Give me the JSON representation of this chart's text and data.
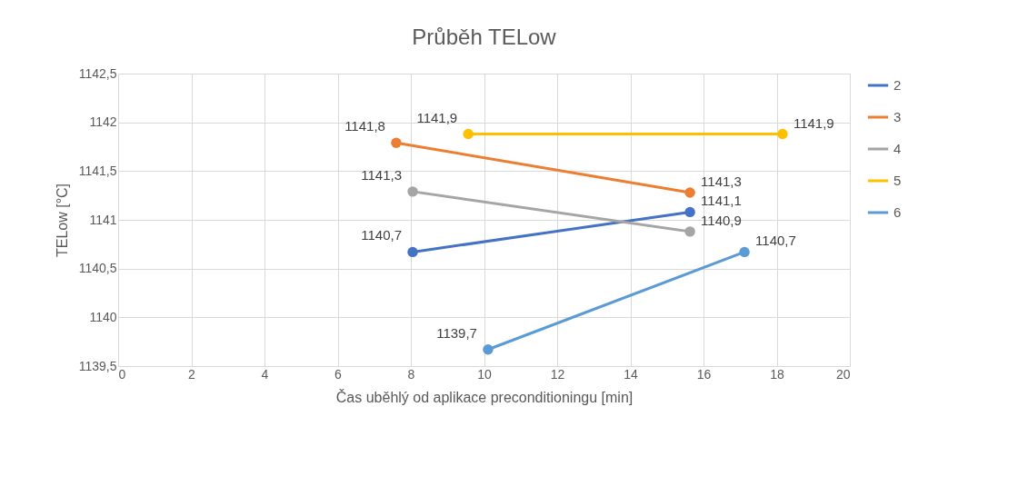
{
  "chart_data": {
    "type": "line",
    "title": "Průběh TELow",
    "xlabel": "Čas uběhlý od aplikace preconditioningu [min]",
    "ylabel": "TELow [°C]",
    "xlim": [
      0,
      20
    ],
    "xticks": [
      0,
      2,
      4,
      6,
      8,
      10,
      12,
      14,
      16,
      18,
      20
    ],
    "ylim": [
      1139.5,
      1142.5
    ],
    "yticks": [
      {
        "value": 1139.5,
        "label": "1139,5"
      },
      1140,
      {
        "value": 1140.5,
        "label": "1140,5"
      },
      1141,
      {
        "value": 1141.5,
        "label": "1141,5"
      },
      1142,
      {
        "value": 1142.5,
        "label": "1142,5"
      }
    ],
    "grid": true,
    "legend": "right",
    "marker": "circle",
    "line_style": "solid",
    "series": [
      {
        "name": "2",
        "color": "#4472c4",
        "x": [
          8.05,
          15.63
        ],
        "values": [
          1140.67,
          1141.08
        ],
        "value_labels": [
          "1140,7",
          "1141,1"
        ]
      },
      {
        "name": "3",
        "color": "#ed7d31",
        "x": [
          7.6,
          15.63
        ],
        "values": [
          1141.79,
          1141.28
        ],
        "value_labels": [
          "1141,8",
          "1141,3"
        ]
      },
      {
        "name": "4",
        "color": "#a5a5a5",
        "x": [
          8.05,
          15.63
        ],
        "values": [
          1141.29,
          1140.88
        ],
        "value_labels": [
          "1141,3",
          "1140,9"
        ]
      },
      {
        "name": "5",
        "color": "#ffc000",
        "x": [
          9.57,
          18.16
        ],
        "values": [
          1141.88,
          1141.88
        ],
        "value_labels": [
          "1141,9",
          "1141,9"
        ]
      },
      {
        "name": "6",
        "color": "#5b9bd5",
        "x": [
          10.11,
          17.12
        ],
        "values": [
          1139.67,
          1140.67
        ],
        "value_labels": [
          "1139,7",
          "1140,7"
        ]
      }
    ]
  }
}
